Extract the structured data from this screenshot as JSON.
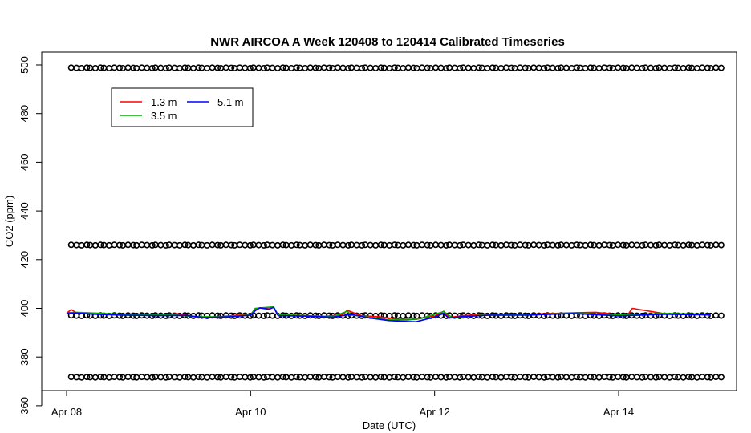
{
  "chart_data": {
    "type": "line",
    "title": "NWR AIRCOA A  Week 120408 to 120414  Calibrated Timeseries",
    "xlabel": "Date (UTC)",
    "ylabel": "CO2 (ppm)",
    "x_axis": {
      "unit": "day",
      "range_days": [
        7.85,
        15.15
      ],
      "ticks": [
        {
          "label": "Apr 08",
          "day": 8
        },
        {
          "label": "Apr 10",
          "day": 10
        },
        {
          "label": "Apr 12",
          "day": 12
        },
        {
          "label": "Apr 14",
          "day": 14
        }
      ]
    },
    "y_axis": {
      "range": [
        367,
        505
      ],
      "ticks": [
        360,
        380,
        400,
        420,
        440,
        460,
        480,
        500
      ]
    },
    "grid": false,
    "legend": {
      "placement": "top-left",
      "entries": [
        {
          "name": "1.3 m",
          "color": "#ff0000"
        },
        {
          "name": "3.5 m",
          "color": "#00aa00"
        },
        {
          "name": "5.1 m",
          "color": "#0000ff"
        }
      ]
    },
    "standards": {
      "marker": "open-circle",
      "color": "#000000",
      "levels_ppm": [
        498.8,
        426.0,
        397.0,
        371.7
      ],
      "x_days": [
        8.05,
        15.1
      ],
      "samples": 140
    },
    "series": [
      {
        "name": "1.3 m",
        "color": "#ff0000",
        "x": [
          8.0,
          8.05,
          8.1,
          8.3,
          8.6,
          9.0,
          9.2,
          9.4,
          9.6,
          9.8,
          10.0,
          10.05,
          10.1,
          10.2,
          10.25,
          10.3,
          10.5,
          10.8,
          11.0,
          11.05,
          11.2,
          11.4,
          11.6,
          11.8,
          11.9,
          12.0,
          12.1,
          12.15,
          12.3,
          12.6,
          13.0,
          13.5,
          13.75,
          13.9,
          14.0,
          14.1,
          14.15,
          14.5,
          15.0
        ],
        "y": [
          398,
          399.5,
          398.3,
          397.8,
          397.5,
          397.2,
          397.8,
          396.5,
          396.3,
          397.0,
          397.5,
          399.5,
          400.2,
          399.8,
          400.5,
          397.0,
          397.2,
          396.7,
          397.4,
          399.2,
          397.0,
          396.5,
          395.6,
          395.5,
          396.4,
          396.8,
          398.8,
          396.2,
          397.0,
          397.5,
          397.5,
          398.2,
          398.4,
          397.8,
          397.0,
          397.4,
          400.0,
          397.8,
          397.5
        ]
      },
      {
        "name": "3.5 m",
        "color": "#00aa00",
        "x": [
          8.0,
          8.1,
          8.4,
          8.8,
          9.1,
          9.4,
          9.7,
          10.0,
          10.05,
          10.15,
          10.25,
          10.3,
          10.6,
          10.9,
          11.05,
          11.1,
          11.3,
          11.5,
          11.7,
          11.85,
          12.0,
          12.1,
          12.2,
          12.5,
          13.0,
          13.5,
          14.0,
          14.5,
          15.0
        ],
        "y": [
          398.2,
          398.4,
          397.9,
          397.4,
          397.5,
          396.6,
          396.5,
          397.3,
          400.0,
          400.3,
          400.6,
          397.3,
          397.0,
          396.6,
          398.8,
          397.2,
          396.3,
          395.3,
          395.2,
          395.8,
          397.6,
          398.6,
          396.0,
          397.2,
          397.3,
          398.0,
          397.3,
          397.9,
          397.6
        ]
      },
      {
        "name": "5.1 m",
        "color": "#0000ff",
        "x": [
          8.0,
          8.1,
          8.3,
          8.6,
          9.0,
          9.3,
          9.5,
          9.8,
          10.0,
          10.05,
          10.1,
          10.2,
          10.25,
          10.3,
          10.6,
          10.9,
          11.0,
          11.1,
          11.3,
          11.5,
          11.7,
          11.8,
          11.9,
          12.0,
          12.1,
          12.15,
          12.3,
          12.6,
          13.0,
          13.5,
          14.0,
          14.5,
          15.0
        ],
        "y": [
          398.0,
          398.1,
          397.6,
          397.2,
          397.0,
          397.1,
          396.2,
          396.6,
          397.2,
          399.0,
          400.2,
          399.6,
          400.4,
          397.0,
          396.8,
          396.4,
          397.0,
          397.5,
          396.0,
          395.0,
          394.6,
          394.5,
          395.5,
          396.4,
          398.0,
          396.0,
          396.6,
          397.2,
          397.2,
          397.9,
          396.9,
          397.6,
          397.3
        ]
      }
    ]
  }
}
